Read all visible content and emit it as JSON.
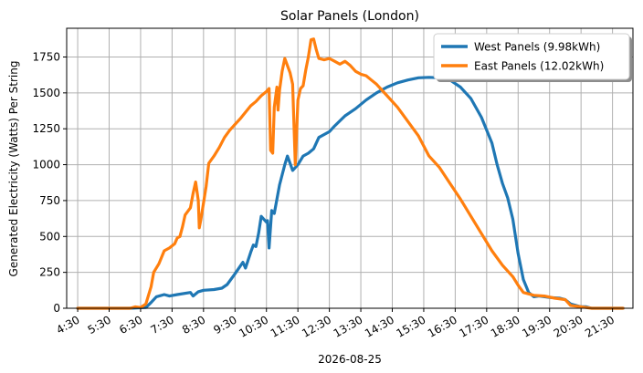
{
  "chart_data": {
    "type": "line",
    "title": "Solar Panels (London)",
    "xlabel": "2026-08-25",
    "ylabel": "Generated Electricity (Watts) Per String",
    "ylim": [
      0,
      1950
    ],
    "xlim": [
      "04:09",
      "22:09"
    ],
    "grid": true,
    "legend_position": "top-right",
    "x_ticks": [
      "4:30",
      "5:30",
      "6:30",
      "7:30",
      "8:30",
      "9:30",
      "10:30",
      "11:30",
      "12:30",
      "13:30",
      "14:30",
      "15:30",
      "16:30",
      "17:30",
      "18:30",
      "19:30",
      "20:30",
      "21:30"
    ],
    "y_ticks": [
      0,
      250,
      500,
      750,
      1000,
      1250,
      1500,
      1750
    ],
    "series": [
      {
        "name": "West Panels (9.98kWh)",
        "color": "#1f77b4",
        "points": [
          [
            "04:30",
            0
          ],
          [
            "06:10",
            0
          ],
          [
            "06:40",
            5
          ],
          [
            "06:50",
            40
          ],
          [
            "07:00",
            80
          ],
          [
            "07:15",
            95
          ],
          [
            "07:25",
            85
          ],
          [
            "07:40",
            95
          ],
          [
            "08:05",
            110
          ],
          [
            "08:10",
            85
          ],
          [
            "08:20",
            115
          ],
          [
            "08:30",
            125
          ],
          [
            "08:50",
            130
          ],
          [
            "09:05",
            140
          ],
          [
            "09:15",
            165
          ],
          [
            "09:30",
            240
          ],
          [
            "09:45",
            320
          ],
          [
            "09:50",
            280
          ],
          [
            "10:00",
            390
          ],
          [
            "10:05",
            440
          ],
          [
            "10:10",
            430
          ],
          [
            "10:15",
            520
          ],
          [
            "10:20",
            640
          ],
          [
            "10:25",
            620
          ],
          [
            "10:30",
            600
          ],
          [
            "10:32",
            610
          ],
          [
            "10:35",
            420
          ],
          [
            "10:40",
            680
          ],
          [
            "10:45",
            660
          ],
          [
            "10:50",
            760
          ],
          [
            "10:55",
            860
          ],
          [
            "11:05",
            1000
          ],
          [
            "11:10",
            1060
          ],
          [
            "11:15",
            1010
          ],
          [
            "11:20",
            960
          ],
          [
            "11:30",
            1000
          ],
          [
            "11:40",
            1060
          ],
          [
            "11:50",
            1080
          ],
          [
            "12:00",
            1110
          ],
          [
            "12:10",
            1190
          ],
          [
            "12:30",
            1230
          ],
          [
            "12:40",
            1270
          ],
          [
            "13:00",
            1340
          ],
          [
            "13:20",
            1390
          ],
          [
            "13:40",
            1450
          ],
          [
            "14:00",
            1500
          ],
          [
            "14:20",
            1540
          ],
          [
            "14:40",
            1570
          ],
          [
            "15:00",
            1590
          ],
          [
            "15:20",
            1605
          ],
          [
            "15:40",
            1608
          ],
          [
            "16:00",
            1605
          ],
          [
            "16:20",
            1590
          ],
          [
            "16:40",
            1540
          ],
          [
            "17:00",
            1460
          ],
          [
            "17:20",
            1330
          ],
          [
            "17:40",
            1150
          ],
          [
            "17:50",
            1000
          ],
          [
            "18:00",
            870
          ],
          [
            "18:10",
            770
          ],
          [
            "18:20",
            620
          ],
          [
            "18:30",
            380
          ],
          [
            "18:40",
            200
          ],
          [
            "18:50",
            110
          ],
          [
            "19:00",
            80
          ],
          [
            "19:10",
            85
          ],
          [
            "19:30",
            75
          ],
          [
            "19:50",
            70
          ],
          [
            "20:00",
            60
          ],
          [
            "20:10",
            30
          ],
          [
            "20:30",
            10
          ],
          [
            "20:40",
            10
          ],
          [
            "20:50",
            0
          ],
          [
            "21:50",
            0
          ]
        ]
      },
      {
        "name": "East Panels (12.02kWh)",
        "color": "#ff7f0e",
        "points": [
          [
            "04:30",
            0
          ],
          [
            "06:10",
            0
          ],
          [
            "06:20",
            10
          ],
          [
            "06:30",
            5
          ],
          [
            "06:40",
            30
          ],
          [
            "06:50",
            150
          ],
          [
            "06:55",
            250
          ],
          [
            "07:05",
            310
          ],
          [
            "07:15",
            400
          ],
          [
            "07:25",
            420
          ],
          [
            "07:35",
            450
          ],
          [
            "07:40",
            490
          ],
          [
            "07:45",
            500
          ],
          [
            "07:50",
            570
          ],
          [
            "07:55",
            650
          ],
          [
            "08:05",
            700
          ],
          [
            "08:10",
            800
          ],
          [
            "08:15",
            880
          ],
          [
            "08:20",
            750
          ],
          [
            "08:22",
            560
          ],
          [
            "08:25",
            620
          ],
          [
            "08:35",
            850
          ],
          [
            "08:40",
            1010
          ],
          [
            "08:50",
            1060
          ],
          [
            "09:00",
            1120
          ],
          [
            "09:10",
            1190
          ],
          [
            "09:20",
            1240
          ],
          [
            "09:40",
            1320
          ],
          [
            "10:00",
            1410
          ],
          [
            "10:10",
            1440
          ],
          [
            "10:20",
            1480
          ],
          [
            "10:30",
            1510
          ],
          [
            "10:35",
            1530
          ],
          [
            "10:38",
            1100
          ],
          [
            "10:42",
            1080
          ],
          [
            "10:45",
            1400
          ],
          [
            "10:50",
            1540
          ],
          [
            "10:52",
            1380
          ],
          [
            "10:55",
            1520
          ],
          [
            "11:00",
            1650
          ],
          [
            "11:05",
            1740
          ],
          [
            "11:10",
            1690
          ],
          [
            "11:15",
            1640
          ],
          [
            "11:20",
            1560
          ],
          [
            "11:25",
            1000
          ],
          [
            "11:30",
            1450
          ],
          [
            "11:35",
            1530
          ],
          [
            "11:40",
            1550
          ],
          [
            "11:45",
            1660
          ],
          [
            "11:50",
            1750
          ],
          [
            "11:55",
            1870
          ],
          [
            "12:00",
            1875
          ],
          [
            "12:05",
            1800
          ],
          [
            "12:10",
            1740
          ],
          [
            "12:20",
            1730
          ],
          [
            "12:30",
            1740
          ],
          [
            "12:40",
            1720
          ],
          [
            "12:50",
            1700
          ],
          [
            "13:00",
            1720
          ],
          [
            "13:10",
            1690
          ],
          [
            "13:20",
            1650
          ],
          [
            "13:30",
            1630
          ],
          [
            "13:40",
            1620
          ],
          [
            "13:50",
            1590
          ],
          [
            "14:00",
            1560
          ],
          [
            "14:20",
            1480
          ],
          [
            "14:40",
            1400
          ],
          [
            "15:00",
            1300
          ],
          [
            "15:20",
            1200
          ],
          [
            "15:40",
            1060
          ],
          [
            "16:00",
            980
          ],
          [
            "16:20",
            870
          ],
          [
            "16:40",
            760
          ],
          [
            "17:00",
            640
          ],
          [
            "17:20",
            520
          ],
          [
            "17:40",
            400
          ],
          [
            "18:00",
            300
          ],
          [
            "18:20",
            220
          ],
          [
            "18:30",
            160
          ],
          [
            "18:40",
            110
          ],
          [
            "19:00",
            90
          ],
          [
            "19:20",
            85
          ],
          [
            "19:40",
            70
          ],
          [
            "20:00",
            60
          ],
          [
            "20:10",
            20
          ],
          [
            "20:30",
            10
          ],
          [
            "20:50",
            0
          ],
          [
            "21:50",
            0
          ]
        ]
      }
    ]
  }
}
